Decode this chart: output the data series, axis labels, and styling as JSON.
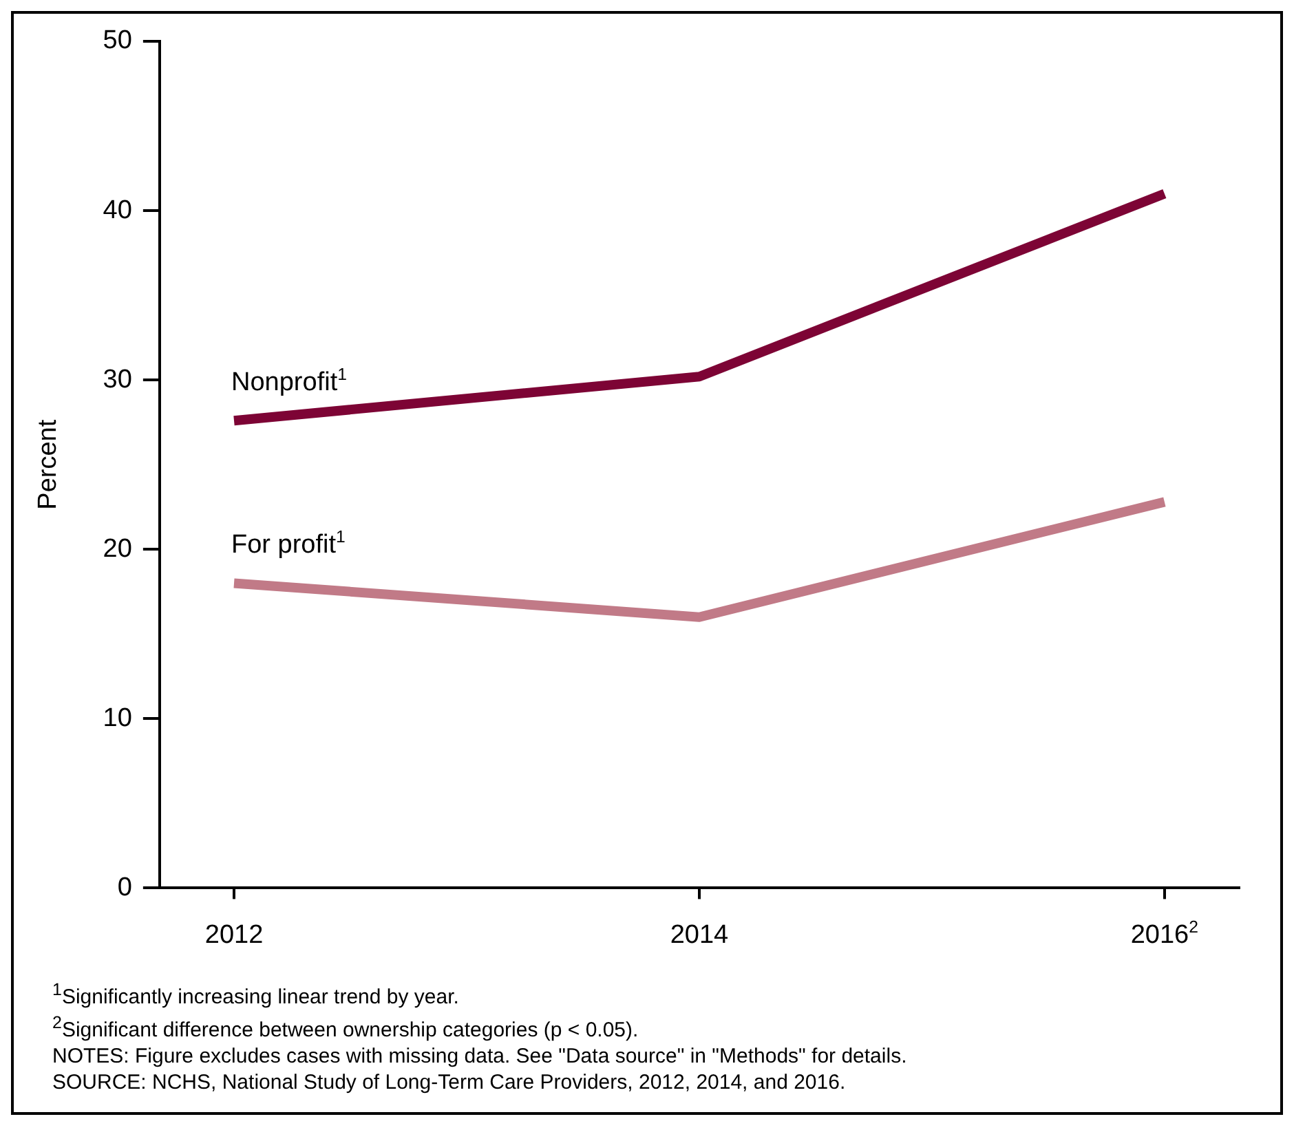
{
  "chart_data": {
    "type": "line",
    "ylabel": "Percent",
    "categories": [
      "2012",
      "2014",
      "2016$^{2}$"
    ],
    "series": [
      {
        "name": "Nonprofit$^{1}$",
        "color": "#7d0435",
        "values": [
          27.6,
          30.2,
          41.0
        ]
      },
      {
        "name": "For profit$^{1}$",
        "color": "#c17a87",
        "values": [
          18.0,
          16.0,
          22.8
        ]
      }
    ],
    "ylim": [
      0,
      50
    ],
    "yticks": [
      0,
      10,
      20,
      30,
      40,
      50
    ],
    "grid": false,
    "legend": false,
    "marker": "none",
    "line_style": "solid",
    "annotations": [
      "$^{1}$Significantly increasing linear trend by year.",
      "$^{2}$Significant difference between ownership categories (p < 0.05).",
      "NOTES: Figure excludes cases with missing data. See \"Data source\" in \"Methods\" for details.",
      "SOURCE: NCHS, National Study of Long-Term Care Providers, 2012, 2014, and 2016."
    ]
  }
}
